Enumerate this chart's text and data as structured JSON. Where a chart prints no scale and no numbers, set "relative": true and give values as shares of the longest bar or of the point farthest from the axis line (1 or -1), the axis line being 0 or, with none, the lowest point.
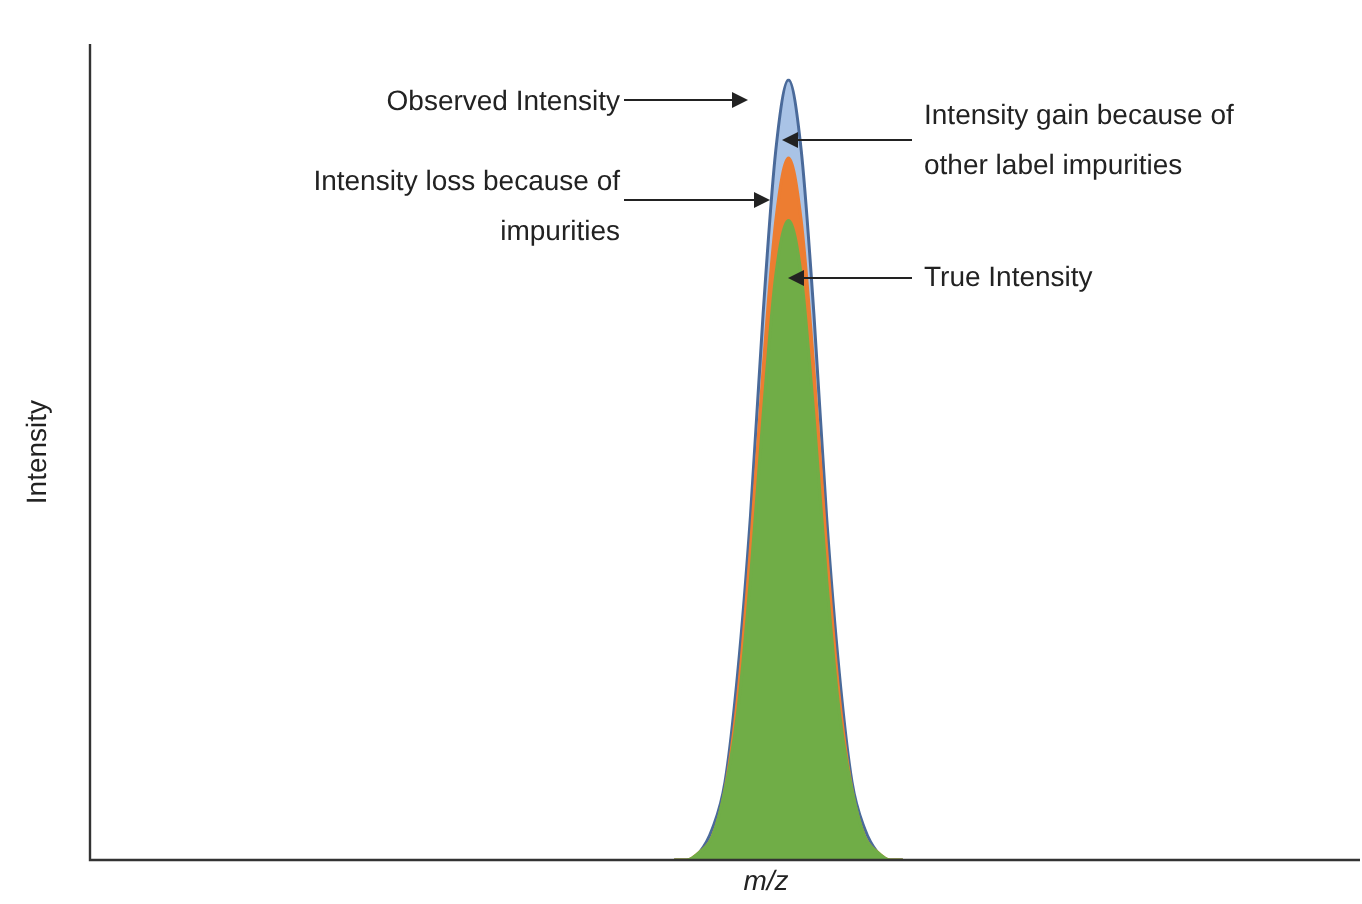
{
  "chart_data": {
    "type": "area",
    "relative": true,
    "xlabel": "m/z",
    "ylabel": "Intensity",
    "legend": false,
    "tick_labels": false,
    "annotations": [
      "Observed Intensity",
      "Intensity gain because of other label impurities",
      "Intensity loss because of impurities",
      "True Intensity"
    ],
    "categories": [
      null,
      null,
      null,
      null,
      null,
      null,
      null,
      null,
      null,
      null,
      null,
      null,
      null,
      null,
      null,
      null,
      null,
      null,
      null,
      null,
      null,
      null,
      null,
      null,
      null,
      null,
      null,
      null,
      null,
      null,
      null,
      null,
      null,
      null,
      null,
      null,
      null,
      null,
      null,
      null,
      null,
      null,
      null,
      null,
      null,
      null,
      null,
      null,
      null,
      null,
      null,
      null,
      null,
      null,
      null,
      null,
      null,
      null,
      null,
      null,
      null,
      null,
      null,
      null,
      null,
      null,
      null,
      null,
      null,
      null,
      null,
      null,
      null,
      null,
      null,
      null,
      null,
      null,
      null,
      null,
      null,
      null,
      null,
      null,
      null,
      null,
      null,
      null,
      null,
      null,
      null,
      null,
      null,
      null,
      null,
      null,
      null,
      null,
      null,
      null,
      null
    ],
    "series": [
      {
        "color": "#a9c3e6",
        "values": [
          null,
          null,
          null,
          null,
          null,
          null,
          null,
          null,
          null,
          null,
          null,
          null,
          null,
          null,
          null,
          null,
          null,
          null,
          null,
          null,
          null,
          null,
          null,
          null,
          null,
          null,
          null,
          null,
          null,
          null,
          null,
          null,
          null,
          null,
          null,
          null,
          null,
          null,
          null,
          null,
          null,
          null,
          null,
          null,
          null,
          null,
          0,
          0,
          0.01,
          0.04,
          0.1,
          0.24,
          0.44,
          0.7,
          0.91,
          1,
          0.91,
          0.7,
          0.44,
          0.24,
          0.1,
          0.04,
          0.01,
          0,
          0,
          null,
          null,
          null,
          null,
          null,
          null,
          null,
          null,
          null,
          null,
          null,
          null,
          null,
          null,
          null,
          null,
          null,
          null,
          null,
          null,
          null,
          null,
          null,
          null,
          null,
          null,
          null,
          null,
          null,
          null,
          null,
          null,
          null,
          null,
          null,
          null
        ]
      },
      {
        "color": "#ed7d31",
        "values": [
          null,
          null,
          null,
          null,
          null,
          null,
          null,
          null,
          null,
          null,
          null,
          null,
          null,
          null,
          null,
          null,
          null,
          null,
          null,
          null,
          null,
          null,
          null,
          null,
          null,
          null,
          null,
          null,
          null,
          null,
          null,
          null,
          null,
          null,
          null,
          null,
          null,
          null,
          null,
          null,
          null,
          null,
          null,
          null,
          null,
          null,
          0,
          0,
          0.01,
          0.03,
          0.09,
          0.21,
          0.4,
          0.63,
          0.82,
          0.9,
          0.82,
          0.63,
          0.4,
          0.21,
          0.09,
          0.03,
          0.01,
          0,
          0,
          null,
          null,
          null,
          null,
          null,
          null,
          null,
          null,
          null,
          null,
          null,
          null,
          null,
          null,
          null,
          null,
          null,
          null,
          null,
          null,
          null,
          null,
          null,
          null,
          null,
          null,
          null,
          null,
          null,
          null,
          null,
          null,
          null,
          null,
          null,
          null
        ]
      },
      {
        "color": "#70ad47",
        "values": [
          null,
          null,
          null,
          null,
          null,
          null,
          null,
          null,
          null,
          null,
          null,
          null,
          null,
          null,
          null,
          null,
          null,
          null,
          null,
          null,
          null,
          null,
          null,
          null,
          null,
          null,
          null,
          null,
          null,
          null,
          null,
          null,
          null,
          null,
          null,
          null,
          null,
          null,
          null,
          null,
          null,
          null,
          null,
          null,
          null,
          null,
          0,
          0,
          0.01,
          0.03,
          0.09,
          0.19,
          0.36,
          0.57,
          0.75,
          0.82,
          0.75,
          0.57,
          0.36,
          0.19,
          0.09,
          0.03,
          0.01,
          0,
          0,
          null,
          null,
          null,
          null,
          null,
          null,
          null,
          null,
          null,
          null,
          null,
          null,
          null,
          null,
          null,
          null,
          null,
          null,
          null,
          null,
          null,
          null,
          null,
          null,
          null,
          null,
          null,
          null,
          null,
          null,
          null,
          null,
          null,
          null,
          null,
          null
        ]
      }
    ]
  }
}
